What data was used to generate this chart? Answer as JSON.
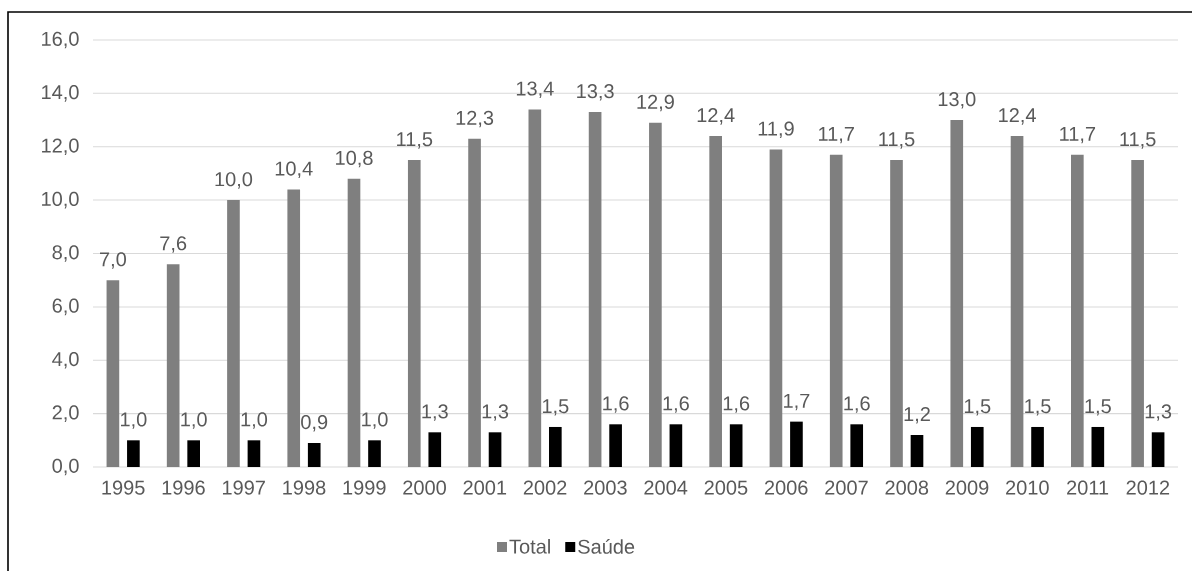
{
  "chart_data": {
    "type": "bar",
    "categories": [
      "1995",
      "1996",
      "1997",
      "1998",
      "1999",
      "2000",
      "2001",
      "2002",
      "2003",
      "2004",
      "2005",
      "2006",
      "2007",
      "2008",
      "2009",
      "2010",
      "2011",
      "2012"
    ],
    "series": [
      {
        "name": "Total",
        "color": "#7f7f7f",
        "values": [
          7.0,
          7.6,
          10.0,
          10.4,
          10.8,
          11.5,
          12.3,
          13.4,
          13.3,
          12.9,
          12.4,
          11.9,
          11.7,
          11.5,
          13.0,
          12.4,
          11.7,
          11.5
        ],
        "value_labels": [
          "7,0",
          "7,6",
          "10,0",
          "10,4",
          "10,8",
          "11,5",
          "12,3",
          "13,4",
          "13,3",
          "12,9",
          "12,4",
          "11,9",
          "11,7",
          "11,5",
          "13,0",
          "12,4",
          "11,7",
          "11,5"
        ]
      },
      {
        "name": "Saúde",
        "color": "#000000",
        "values": [
          1.0,
          1.0,
          1.0,
          0.9,
          1.0,
          1.3,
          1.3,
          1.5,
          1.6,
          1.6,
          1.6,
          1.7,
          1.6,
          1.2,
          1.5,
          1.5,
          1.5,
          1.3
        ],
        "value_labels": [
          "1,0",
          "1,0",
          "1,0",
          "0,9",
          "1,0",
          "1,3",
          "1,3",
          "1,5",
          "1,6",
          "1,6",
          "1,6",
          "1,7",
          "1,6",
          "1,2",
          "1,5",
          "1,5",
          "1,5",
          "1,3"
        ]
      }
    ],
    "ylim": [
      0,
      16
    ],
    "yticks": [
      {
        "value": 0,
        "label": "0,0"
      },
      {
        "value": 2,
        "label": "2,0"
      },
      {
        "value": 4,
        "label": "4,0"
      },
      {
        "value": 6,
        "label": "6,0"
      },
      {
        "value": 8,
        "label": "8,0"
      },
      {
        "value": 10,
        "label": "10,0"
      },
      {
        "value": 12,
        "label": "12,0"
      },
      {
        "value": 14,
        "label": "14,0"
      },
      {
        "value": 16,
        "label": "16,0"
      }
    ],
    "grid": "y",
    "legend": "bottom"
  }
}
